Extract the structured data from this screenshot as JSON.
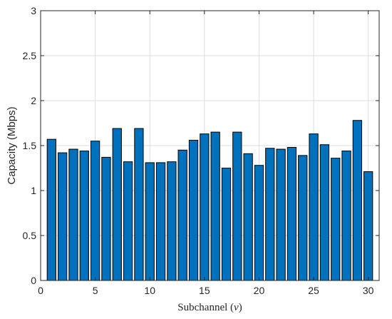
{
  "chart_data": {
    "type": "bar",
    "title": "",
    "xlabel": "Subchannel (v)",
    "ylabel": "Capacity (Mbps)",
    "xlim": [
      0,
      31
    ],
    "ylim": [
      0,
      3
    ],
    "xticks": [
      0,
      5,
      10,
      15,
      20,
      25,
      30
    ],
    "yticks": [
      0,
      0.5,
      1,
      1.5,
      2,
      2.5,
      3
    ],
    "grid": true,
    "bar_color": "#0072BD",
    "categories": [
      1,
      2,
      3,
      4,
      5,
      6,
      7,
      8,
      9,
      10,
      11,
      12,
      13,
      14,
      15,
      16,
      17,
      18,
      19,
      20,
      21,
      22,
      23,
      24,
      25,
      26,
      27,
      28,
      29,
      30
    ],
    "values": [
      1.57,
      1.42,
      1.46,
      1.44,
      1.55,
      1.37,
      1.69,
      1.32,
      1.69,
      1.31,
      1.31,
      1.32,
      1.45,
      1.56,
      1.63,
      1.65,
      1.25,
      1.65,
      1.41,
      1.28,
      1.47,
      1.46,
      1.48,
      1.39,
      1.63,
      1.51,
      1.36,
      1.44,
      1.78,
      1.21
    ]
  }
}
